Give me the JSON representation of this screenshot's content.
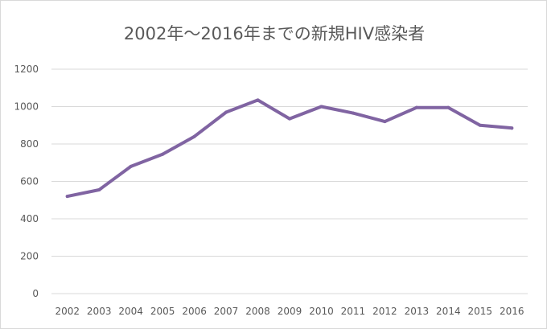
{
  "chart_data": {
    "type": "line",
    "title": "2002年～2016年までの新規HIV感染者",
    "categories": [
      "2002",
      "2003",
      "2004",
      "2005",
      "2006",
      "2007",
      "2008",
      "2009",
      "2010",
      "2011",
      "2012",
      "2013",
      "2014",
      "2015",
      "2016"
    ],
    "series": [
      {
        "values": [
          520,
          555,
          680,
          745,
          840,
          970,
          1035,
          935,
          1000,
          965,
          920,
          995,
          995,
          900,
          885
        ],
        "color": "#8064a2"
      }
    ],
    "yticks": [
      "0",
      "200",
      "400",
      "600",
      "800",
      "1000",
      "1200"
    ],
    "ylim": [
      0,
      1200
    ],
    "grid": true,
    "legend": "none"
  }
}
